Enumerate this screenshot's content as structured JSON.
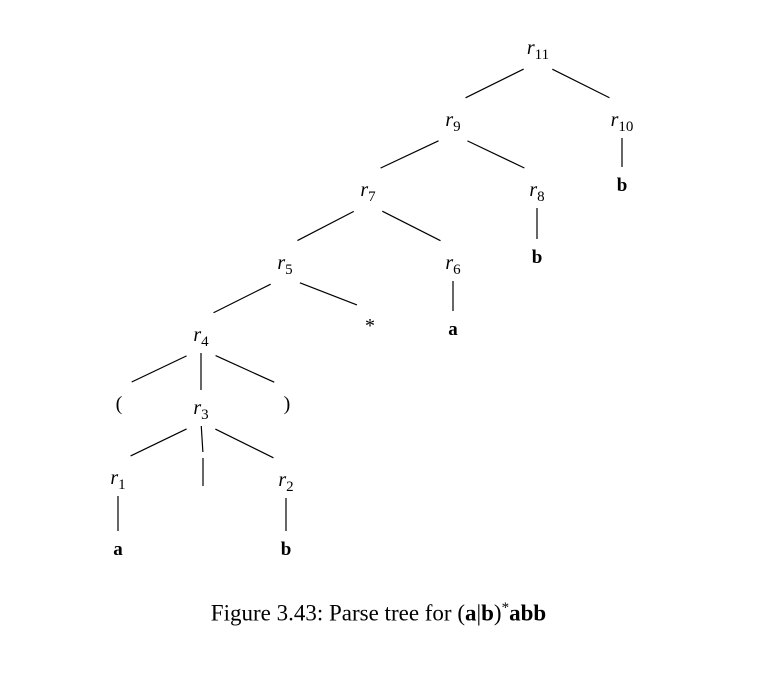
{
  "figure": {
    "caption_text": "Figure 3.43: Parse tree for ",
    "caption_expr": {
      "open": "(",
      "a": "a",
      "bar": "|",
      "b": "b",
      "close": ")",
      "star": "*",
      "tail": "abb"
    }
  },
  "tree": {
    "nodes": [
      {
        "id": "r11",
        "symbol": "r",
        "sub": "11"
      },
      {
        "id": "r9",
        "symbol": "r",
        "sub": "9"
      },
      {
        "id": "r10",
        "symbol": "r",
        "sub": "10"
      },
      {
        "id": "r7",
        "symbol": "r",
        "sub": "7"
      },
      {
        "id": "r8",
        "symbol": "r",
        "sub": "8"
      },
      {
        "id": "b1",
        "label": "b",
        "kind": "leaf"
      },
      {
        "id": "b2",
        "label": "b",
        "kind": "leaf"
      },
      {
        "id": "r5",
        "symbol": "r",
        "sub": "5"
      },
      {
        "id": "r6",
        "symbol": "r",
        "sub": "6"
      },
      {
        "id": "r4",
        "symbol": "r",
        "sub": "4"
      },
      {
        "id": "star",
        "label": "*",
        "kind": "punct"
      },
      {
        "id": "a1",
        "label": "a",
        "kind": "leaf"
      },
      {
        "id": "lp",
        "label": "(",
        "kind": "punct"
      },
      {
        "id": "r3",
        "symbol": "r",
        "sub": "3"
      },
      {
        "id": "rp",
        "label": ")",
        "kind": "punct"
      },
      {
        "id": "r1",
        "symbol": "r",
        "sub": "1"
      },
      {
        "id": "bar",
        "label": "|",
        "kind": "punct"
      },
      {
        "id": "r2",
        "symbol": "r",
        "sub": "2"
      },
      {
        "id": "a2",
        "label": "a",
        "kind": "leaf"
      },
      {
        "id": "b3",
        "label": "b",
        "kind": "leaf"
      }
    ],
    "edges": [
      [
        "r11",
        "r9"
      ],
      [
        "r11",
        "r10"
      ],
      [
        "r10",
        "b1"
      ],
      [
        "r9",
        "r7"
      ],
      [
        "r9",
        "r8"
      ],
      [
        "r8",
        "b2"
      ],
      [
        "r7",
        "r5"
      ],
      [
        "r7",
        "r6"
      ],
      [
        "r6",
        "a1"
      ],
      [
        "r5",
        "r4"
      ],
      [
        "r5",
        "star"
      ],
      [
        "r4",
        "lp"
      ],
      [
        "r4",
        "r3"
      ],
      [
        "r4",
        "rp"
      ],
      [
        "r3",
        "r1"
      ],
      [
        "r3",
        "bar"
      ],
      [
        "r3",
        "r2"
      ],
      [
        "r1",
        "a2"
      ],
      [
        "r2",
        "b3"
      ]
    ]
  }
}
